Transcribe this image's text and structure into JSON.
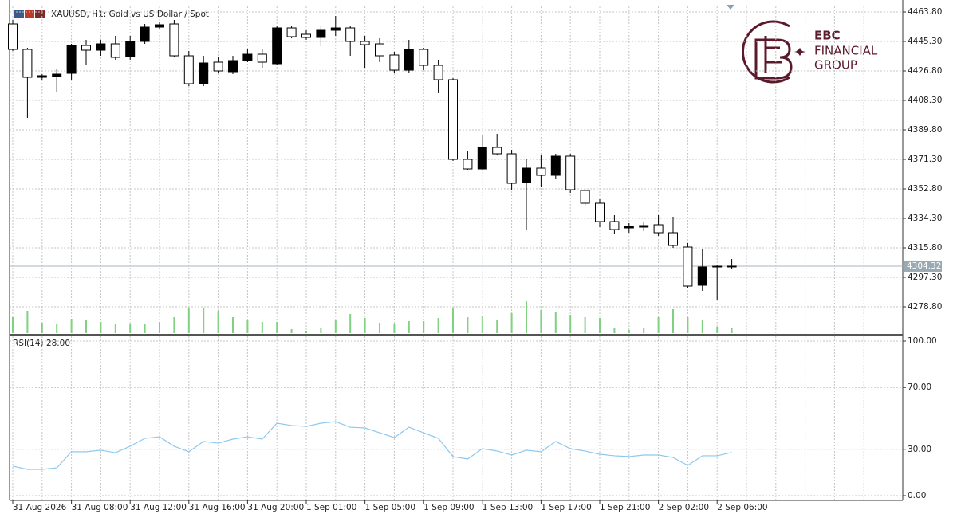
{
  "chart_data": [
    {
      "type": "candlestick",
      "title": "XAUUSD, H1:  Gold vs US Dollar / Spot",
      "categories": [
        "31 Aug 2026",
        null,
        null,
        null,
        "31 Aug 08:00",
        null,
        null,
        null,
        "31 Aug 12:00",
        null,
        null,
        null,
        "31 Aug 16:00",
        null,
        null,
        null,
        "31 Aug 20:00",
        null,
        null,
        null,
        "1 Sep 01:00",
        null,
        null,
        null,
        "1 Sep 05:00",
        null,
        null,
        null,
        "1 Sep 09:00",
        null,
        null,
        null,
        "1 Sep 13:00",
        null,
        null,
        null,
        "1 Sep 17:00",
        null,
        null,
        null,
        "1 Sep 21:00",
        null,
        null,
        null,
        "2 Sep 02:00",
        null,
        null,
        null,
        "2 Sep 06:00",
        null
      ],
      "open": [
        4456.3,
        4440.3,
        4422.8,
        4423.3,
        4425.3,
        4442.8,
        4439.8,
        4443.8,
        4435.8,
        4445.3,
        4454.3,
        4456.3,
        4436.3,
        4418.8,
        4432.3,
        4426.3,
        4433.3,
        4437.3,
        4431.3,
        4453.8,
        4449.8,
        4447.8,
        4452.3,
        4453.8,
        4445.3,
        4443.8,
        4436.8,
        4427.3,
        4440.3,
        4430.3,
        4421.3,
        4371.3,
        4365.3,
        4378.8,
        4374.8,
        4356.8,
        4365.8,
        4361.3,
        4373.3,
        4351.8,
        4343.8,
        4332.3,
        4328.3,
        4328.8,
        4330.3,
        4325.3,
        4316.3,
        4292.3,
        4303.8,
        4304.3
      ],
      "high": [
        4458.8,
        4441.3,
        4424.8,
        4427.8,
        4443.8,
        4446.3,
        4446.3,
        4448.8,
        4448.8,
        4456.3,
        4457.8,
        4458.8,
        4439.3,
        4436.3,
        4435.3,
        4436.3,
        4440.3,
        4440.3,
        4454.8,
        4455.3,
        4452.3,
        4454.8,
        4461.3,
        4455.3,
        4448.8,
        4447.3,
        4438.8,
        4446.3,
        4441.3,
        4433.8,
        4422.3,
        4376.3,
        4386.3,
        4387.3,
        4377.3,
        4371.3,
        4373.8,
        4374.8,
        4374.8,
        4352.8,
        4346.3,
        4336.3,
        4331.3,
        4332.3,
        4336.3,
        4335.3,
        4318.8,
        4315.3,
        4305.3,
        4308.8
      ],
      "low": [
        4439.3,
        4397.3,
        4421.3,
        4413.8,
        4421.3,
        4430.3,
        4436.3,
        4433.8,
        4433.8,
        4443.8,
        4453.3,
        4435.3,
        4417.3,
        4417.3,
        4425.3,
        4424.8,
        4432.3,
        4428.8,
        4430.3,
        4447.3,
        4446.3,
        4442.3,
        4448.8,
        4436.3,
        4428.8,
        4432.3,
        4425.3,
        4425.3,
        4427.3,
        4412.8,
        4370.3,
        4364.8,
        4364.8,
        4373.8,
        4352.3,
        4327.3,
        4353.8,
        4358.8,
        4350.3,
        4342.3,
        4328.8,
        4324.8,
        4325.3,
        4326.3,
        4323.3,
        4315.8,
        4290.3,
        4288.8,
        4282.8,
        4302.3
      ],
      "close": [
        4440.3,
        4422.8,
        4423.8,
        4424.8,
        4442.8,
        4439.8,
        4443.8,
        4435.3,
        4445.3,
        4454.3,
        4455.8,
        4436.3,
        4418.8,
        4431.8,
        4426.8,
        4433.3,
        4437.3,
        4432.3,
        4453.8,
        4448.3,
        4447.8,
        4452.3,
        4453.8,
        4445.3,
        4443.3,
        4436.3,
        4427.3,
        4440.3,
        4430.3,
        4421.3,
        4371.3,
        4365.3,
        4378.8,
        4374.8,
        4356.3,
        4365.8,
        4361.3,
        4373.3,
        4352.3,
        4343.8,
        4332.3,
        4327.3,
        4329.3,
        4329.8,
        4325.3,
        4317.3,
        4291.8,
        4303.8,
        4304.3,
        4304.32
      ],
      "up_color": "#000000",
      "down_color": "#ffffff",
      "volume": {
        "color": "#7fd27f",
        "values": [
          20,
          28,
          13,
          11,
          18,
          17,
          14,
          12,
          11,
          12,
          14,
          20,
          31,
          32,
          28,
          20,
          16,
          14,
          14,
          5,
          3,
          7,
          17,
          24,
          19,
          13,
          12,
          15,
          15,
          19,
          31,
          20,
          21,
          17,
          25,
          40,
          29,
          27,
          23,
          20,
          19,
          6,
          4,
          6,
          20,
          30,
          20,
          17,
          8,
          6
        ]
      },
      "ylim": [
        4262.3,
        4467.3
      ],
      "yticks": [
        {
          "value": 4463.8,
          "label": "4463.80"
        },
        {
          "value": 4445.3,
          "label": "4445.30"
        },
        {
          "value": 4426.8,
          "label": "4426.80"
        },
        {
          "value": 4408.3,
          "label": "4408.30"
        },
        {
          "value": 4389.8,
          "label": "4389.80"
        },
        {
          "value": 4371.3,
          "label": "4371.30"
        },
        {
          "value": 4352.8,
          "label": "4352.80"
        },
        {
          "value": 4334.3,
          "label": "4334.30"
        },
        {
          "value": 4315.8,
          "label": "4315.80"
        },
        {
          "value": 4297.3,
          "label": "4297.30"
        },
        {
          "value": 4278.8,
          "label": "4278.80"
        }
      ],
      "last_price": {
        "value": 4304.32,
        "label": "4304.32"
      },
      "grid": true
    },
    {
      "type": "line",
      "title": "RSI(14) 28.00",
      "color": "#8cc8ef",
      "values": [
        19.1,
        17.0,
        17.0,
        18.0,
        28.4,
        28.4,
        29.4,
        27.8,
        32.0,
        37.1,
        38.1,
        32.0,
        28.4,
        35.1,
        34.0,
        36.6,
        38.1,
        36.6,
        46.9,
        45.4,
        44.8,
        46.9,
        47.9,
        44.3,
        43.8,
        40.7,
        37.6,
        44.3,
        40.7,
        37.1,
        25.3,
        23.7,
        30.4,
        28.9,
        26.3,
        29.4,
        28.4,
        35.1,
        30.4,
        28.9,
        26.8,
        25.8,
        25.3,
        26.3,
        26.3,
        24.7,
        19.6,
        25.8,
        25.8,
        28.0
      ],
      "ylim": [
        -3.1,
        103.1
      ],
      "yticks": [
        {
          "value": 100,
          "label": "100.00"
        },
        {
          "value": 70,
          "label": "70.00"
        },
        {
          "value": 30,
          "label": "30.00"
        },
        {
          "value": 0,
          "label": "0.00"
        }
      ],
      "grid": true
    }
  ],
  "logo": {
    "lines": [
      "EBC",
      "FINANCIAL",
      "GROUP"
    ]
  }
}
